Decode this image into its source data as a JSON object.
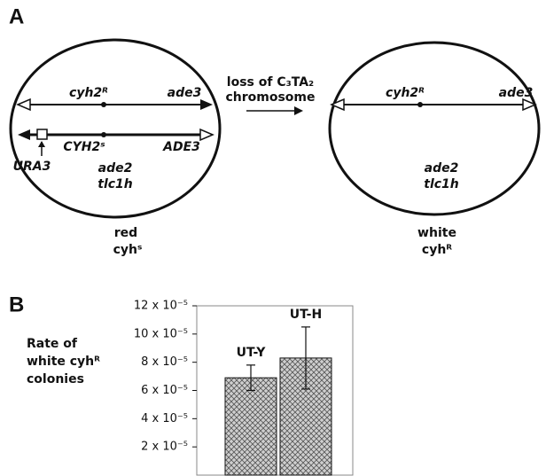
{
  "panel_a": {
    "label": "A",
    "left": {
      "top_left": "cyh2ᴿ",
      "top_right": "ade3",
      "bottom_left": "CYH2ˢ",
      "bottom_right": "ADE3",
      "marker": "URA3",
      "genotype": [
        "ade2",
        "tlc1h"
      ],
      "phenotype": [
        "red",
        "cyhˢ"
      ]
    },
    "transition": [
      "loss of C₃TA₂",
      "chromosome"
    ],
    "right": {
      "top_left": "cyh2ᴿ",
      "top_right": "ade3",
      "genotype": [
        "ade2",
        "tlc1h"
      ],
      "phenotype": [
        "white",
        "cyhᴿ"
      ]
    }
  },
  "chart_data": {
    "type": "bar",
    "label": "B",
    "ylabel": [
      "Rate of",
      "white cyhᴿ",
      "colonies"
    ],
    "categories": [
      "UT-Y",
      "UT-H"
    ],
    "values": [
      6.9e-05,
      8.3e-05
    ],
    "errors": [
      9e-06,
      2.2e-05
    ],
    "ylim": [
      0,
      0.00012
    ],
    "yticks": [
      {
        "value": 2e-05,
        "label": "2 x 10⁻⁵"
      },
      {
        "value": 4e-05,
        "label": "4 x 10⁻⁵"
      },
      {
        "value": 6e-05,
        "label": "6 x 10⁻⁵"
      },
      {
        "value": 8e-05,
        "label": "8 x 10⁻⁵"
      },
      {
        "value": 0.0001,
        "label": "10 x 10⁻⁵"
      },
      {
        "value": 0.00012,
        "label": "12 x 10⁻⁵"
      }
    ],
    "grid": false
  }
}
